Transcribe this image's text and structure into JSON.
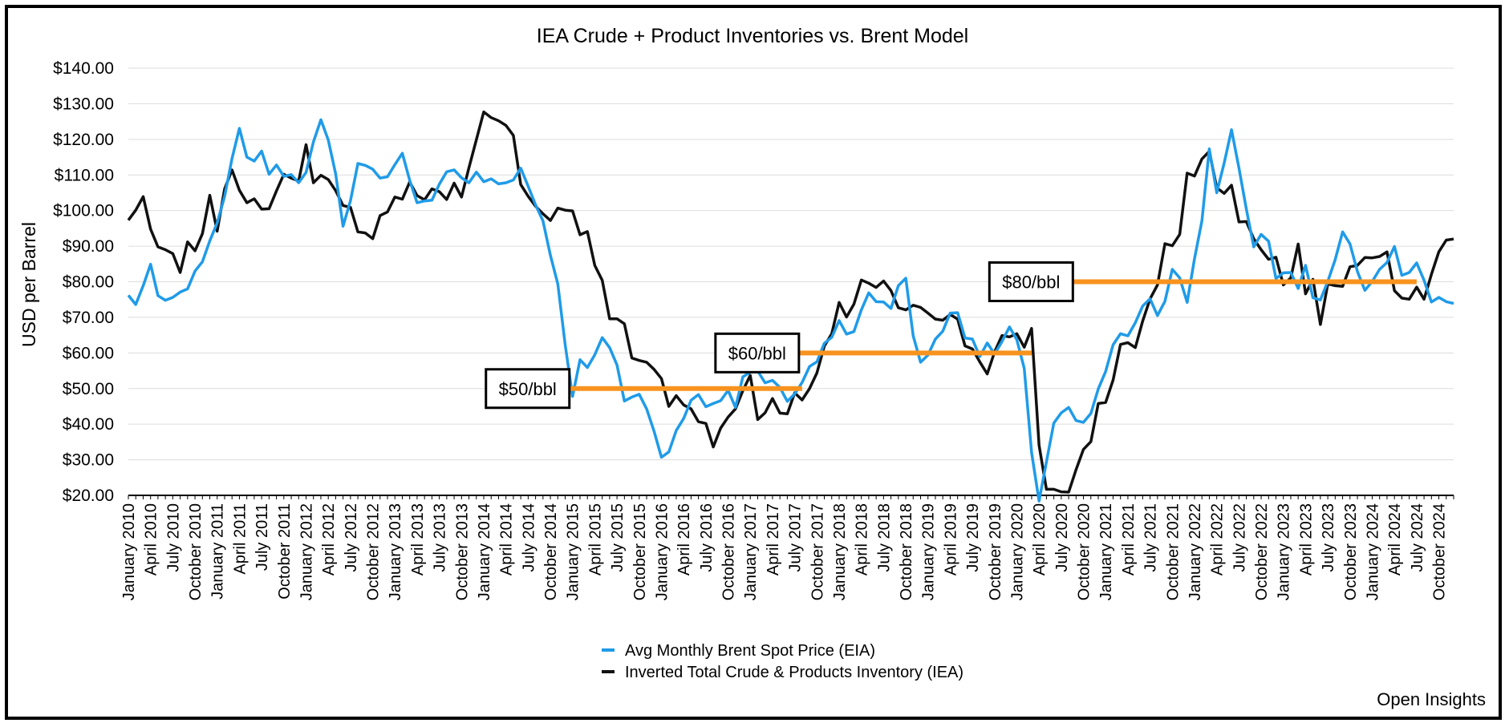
{
  "chart_data": {
    "type": "line",
    "title": "IEA Crude + Product Inventories vs. Brent Model",
    "ylabel": "USD per Barrel",
    "xlabel": "",
    "ylim": [
      20,
      140
    ],
    "yticks": [
      140,
      130,
      120,
      110,
      100,
      90,
      80,
      70,
      60,
      50,
      40,
      30,
      20
    ],
    "ytick_labels": [
      "$140.00",
      "$130.00",
      "$120.00",
      "$110.00",
      "$100.00",
      "$90.00",
      "$80.00",
      "$70.00",
      "$60.00",
      "$50.00",
      "$40.00",
      "$30.00",
      "$20.00"
    ],
    "grid": "horizontal",
    "x_start": "2010-01",
    "x_end": "2024-12",
    "xtick_labels": [
      "January 2010",
      "April 2010",
      "July 2010",
      "October 2010",
      "January 2011",
      "April 2011",
      "July 2011",
      "October 2011",
      "January 2012",
      "April 2012",
      "July 2012",
      "October 2012",
      "January 2013",
      "April 2013",
      "July 2013",
      "October 2013",
      "January 2014",
      "April 2014",
      "July 2014",
      "October 2014",
      "January 2015",
      "April 2015",
      "July 2015",
      "October 2015",
      "January 2016",
      "April 2016",
      "July 2016",
      "October 2016",
      "January 2017",
      "April 2017",
      "July 2017",
      "October 2017",
      "January 2018",
      "April 2018",
      "July 2018",
      "October 2018",
      "January 2019",
      "April 2019",
      "July 2019",
      "October 2019",
      "January 2020",
      "April 2020",
      "July 2020",
      "October 2020",
      "January 2021",
      "April 2021",
      "July 2021",
      "October 2021",
      "January 2022",
      "April 2022",
      "July 2022",
      "October 2022",
      "January 2023",
      "April 2023",
      "July 2023",
      "October 2023",
      "January 2024",
      "April 2024",
      "July 2024",
      "October 2024"
    ],
    "legend_position": "bottom-center",
    "series": [
      {
        "name": "Avg Monthly Brent Spot Price (EIA)",
        "color": "#1f9be8",
        "values": [
          76.2,
          73.6,
          78.9,
          84.9,
          76.1,
          74.8,
          75.6,
          77.1,
          78.0,
          83.0,
          85.6,
          91.5,
          96.5,
          104.0,
          114.6,
          123.1,
          115.0,
          113.9,
          116.7,
          110.2,
          112.8,
          109.6,
          110.1,
          107.8,
          110.7,
          119.3,
          125.5,
          119.8,
          110.3,
          95.6,
          102.8,
          113.2,
          112.7,
          111.6,
          109.1,
          109.5,
          112.9,
          116.1,
          108.5,
          102.2,
          102.7,
          102.9,
          107.4,
          110.9,
          111.4,
          109.2,
          107.8,
          110.8,
          108.1,
          108.9,
          107.5,
          107.8,
          108.6,
          111.9,
          106.8,
          101.6,
          97.1,
          87.4,
          79.4,
          62.3,
          47.8,
          58.1,
          55.9,
          59.5,
          64.3,
          61.5,
          56.6,
          46.5,
          47.6,
          48.4,
          44.3,
          38.0,
          30.7,
          32.2,
          38.2,
          41.6,
          46.7,
          48.3,
          44.9,
          45.8,
          46.6,
          49.5,
          44.7,
          53.3,
          54.6,
          54.9,
          51.6,
          52.3,
          50.3,
          46.4,
          48.5,
          51.7,
          56.2,
          57.5,
          62.7,
          64.4,
          69.1,
          65.3,
          66.0,
          72.1,
          76.9,
          74.4,
          74.3,
          72.5,
          78.9,
          81.0,
          64.8,
          57.4,
          59.4,
          63.9,
          66.1,
          71.2,
          71.3,
          64.2,
          63.9,
          59.0,
          62.8,
          59.7,
          63.2,
          67.3,
          63.7,
          55.7,
          32.0,
          18.4,
          29.4,
          40.3,
          43.2,
          44.7,
          41.0,
          40.5,
          43.0,
          49.9,
          54.8,
          62.3,
          65.4,
          64.8,
          68.5,
          73.2,
          75.2,
          70.5,
          74.5,
          83.5,
          81.1,
          74.2,
          86.5,
          97.1,
          117.3,
          105.0,
          113.3,
          122.7,
          111.9,
          100.4,
          89.8,
          93.3,
          91.4,
          80.9,
          82.5,
          82.6,
          78.1,
          84.6,
          75.5,
          74.9,
          80.1,
          86.2,
          94.0,
          90.6,
          82.9,
          77.6,
          80.1,
          83.5,
          85.4,
          89.9,
          81.8,
          82.6,
          85.3,
          80.4,
          74.3,
          75.6,
          74.4,
          73.9
        ]
      },
      {
        "name": "Inverted Total Crude & Products Inventory (IEA)",
        "color": "#111111",
        "values": [
          97.3,
          100.1,
          103.9,
          94.8,
          89.8,
          89.0,
          87.9,
          82.6,
          91.2,
          88.7,
          93.5,
          104.3,
          94.2,
          106.1,
          111.4,
          105.7,
          102.2,
          103.3,
          100.4,
          100.5,
          105.5,
          110.2,
          109.1,
          108.3,
          118.5,
          107.8,
          109.9,
          108.7,
          105.6,
          101.4,
          100.9,
          94.0,
          93.7,
          92.1,
          98.6,
          99.6,
          103.8,
          103.2,
          108.0,
          104.2,
          103.0,
          106.1,
          105.3,
          103.1,
          107.7,
          103.8,
          112.0,
          119.9,
          127.7,
          126.1,
          125.2,
          123.9,
          121.1,
          107.3,
          104.0,
          101.2,
          99.1,
          97.2,
          100.7,
          100.1,
          99.9,
          93.2,
          94.1,
          84.6,
          80.4,
          69.6,
          69.6,
          68.2,
          58.6,
          57.9,
          57.4,
          55.4,
          52.8,
          45.0,
          48.0,
          45.4,
          44.3,
          40.7,
          40.2,
          33.6,
          38.9,
          42.0,
          44.3,
          49.4,
          53.7,
          41.3,
          43.2,
          47.2,
          43.1,
          42.9,
          48.8,
          46.8,
          50.0,
          54.4,
          61.9,
          65.4,
          74.2,
          70.1,
          73.7,
          80.5,
          79.6,
          78.4,
          80.2,
          77.5,
          72.7,
          72.1,
          73.4,
          72.8,
          71.2,
          69.5,
          69.2,
          70.8,
          69.5,
          62.0,
          61.1,
          57.5,
          54.1,
          60.3,
          64.9,
          64.5,
          65.4,
          61.6,
          66.9,
          34.1,
          21.7,
          21.7,
          21.0,
          20.9,
          27.2,
          32.9,
          35.1,
          45.8,
          46.1,
          52.4,
          62.4,
          62.9,
          61.5,
          69.0,
          75.2,
          79.1,
          90.7,
          90.1,
          93.3,
          110.5,
          109.7,
          114.5,
          116.6,
          106.4,
          104.8,
          107.1,
          96.8,
          96.9,
          92.1,
          89.0,
          86.3,
          86.9,
          79.1,
          81.1,
          90.6,
          76.6,
          80.7,
          68.0,
          79.4,
          78.9,
          78.7,
          84.2,
          84.6,
          86.8,
          86.7,
          87.1,
          88.4,
          77.5,
          75.4,
          75.1,
          78.5,
          75.1,
          82.1,
          88.4,
          91.7,
          92.0
        ]
      }
    ],
    "reference_lines": [
      {
        "label": "$50/bbl",
        "value": 50,
        "color": "#f7931e",
        "x_from": "2015-01",
        "x_to": "2017-08"
      },
      {
        "label": "$60/bbl",
        "value": 60,
        "color": "#f7931e",
        "x_from": "2017-08",
        "x_to": "2020-03"
      },
      {
        "label": "$80/bbl",
        "value": 80,
        "color": "#f7931e",
        "x_from": "2020-09",
        "x_to": "2024-07"
      }
    ],
    "credit": "Open Insights"
  }
}
